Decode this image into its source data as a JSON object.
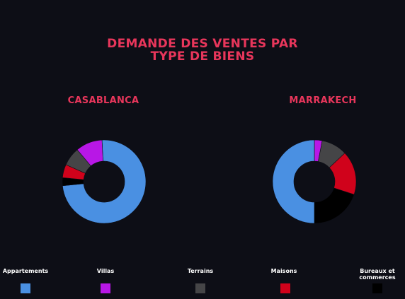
{
  "title_line1": "DEMANDE DES VENTES PAR",
  "title_line2": "TYPE DE BIENS",
  "colors": {
    "title": "#e8365b",
    "background": "#0d0e16"
  },
  "legend": [
    {
      "label": "Appartements",
      "color": "#4a90e2"
    },
    {
      "label": "Villas",
      "color": "#b817e6"
    },
    {
      "label": "Terrains",
      "color": "#454547"
    },
    {
      "label": "Maisons",
      "color": "#d0021b"
    },
    {
      "label": "Bureaux et commerces",
      "color": "#000000"
    }
  ],
  "chart_data": [
    {
      "type": "pie",
      "title": "CASABLANCA",
      "categories": [
        "Appartements",
        "Villas",
        "Terrains",
        "Maisons",
        "Bureaux et commerces"
      ],
      "values": [
        72,
        10,
        7,
        5,
        3
      ],
      "colors": [
        "#4a90e2",
        "#b817e6",
        "#454547",
        "#d0021b",
        "#000000"
      ]
    },
    {
      "type": "pie",
      "title": "MARRAKECH",
      "categories": [
        "Appartements",
        "Villas",
        "Terrains",
        "Maisons",
        "Bureaux et commerces"
      ],
      "values": [
        50,
        3,
        10,
        17,
        20
      ],
      "colors": [
        "#4a90e2",
        "#b817e6",
        "#454547",
        "#d0021b",
        "#000000"
      ]
    }
  ]
}
